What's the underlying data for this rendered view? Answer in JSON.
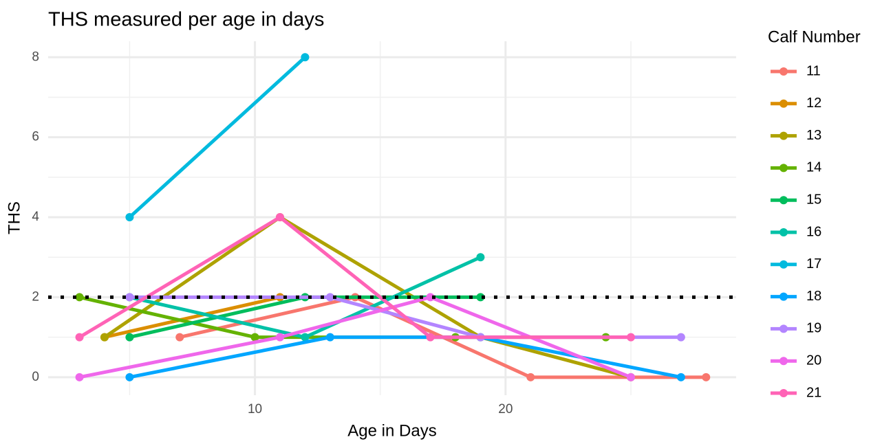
{
  "chart_data": {
    "type": "line",
    "title": "THS measured per age in days",
    "x_label": "Age in Days",
    "y_label": "THS",
    "legend_title": "Calf Number",
    "xlim": [
      1.75,
      29.2
    ],
    "ylim": [
      -0.45,
      8.4
    ],
    "xticks": [
      10,
      20
    ],
    "yticks": [
      0,
      2,
      4,
      6,
      8
    ],
    "xminor": [
      5,
      15,
      25
    ],
    "yminor": [
      1,
      3,
      5,
      7
    ],
    "hline": 2,
    "hline_color": "#000000",
    "grid": true,
    "legend": "right",
    "series": [
      {
        "name": "11",
        "color": "#F8766D",
        "x": [
          7,
          14,
          21,
          28
        ],
        "values": [
          1,
          2,
          0,
          0
        ]
      },
      {
        "name": "12",
        "color": "#DB8E00",
        "x": [
          4,
          11
        ],
        "values": [
          1,
          2
        ]
      },
      {
        "name": "13",
        "color": "#AEA200",
        "x": [
          4,
          11,
          19,
          25
        ],
        "values": [
          1,
          4,
          1,
          0
        ]
      },
      {
        "name": "14",
        "color": "#64B200",
        "x": [
          3,
          10,
          18,
          24
        ],
        "values": [
          2,
          1,
          1,
          1
        ]
      },
      {
        "name": "15",
        "color": "#00BD5C",
        "x": [
          5,
          12,
          19
        ],
        "values": [
          1,
          2,
          2
        ]
      },
      {
        "name": "16",
        "color": "#00C1A7",
        "x": [
          5,
          12,
          19
        ],
        "values": [
          2,
          1,
          3
        ]
      },
      {
        "name": "17",
        "color": "#00BADE",
        "x": [
          5,
          12
        ],
        "values": [
          4,
          8
        ]
      },
      {
        "name": "18",
        "color": "#00A6FF",
        "x": [
          5,
          13,
          19,
          27
        ],
        "values": [
          0,
          1,
          1,
          0
        ]
      },
      {
        "name": "19",
        "color": "#B385FF",
        "x": [
          5,
          13,
          19,
          27
        ],
        "values": [
          2,
          2,
          1,
          1
        ]
      },
      {
        "name": "20",
        "color": "#EF67EB",
        "x": [
          3,
          11,
          17,
          25
        ],
        "values": [
          0,
          1,
          2,
          0
        ]
      },
      {
        "name": "21",
        "color": "#FF63B6",
        "x": [
          3,
          11,
          17,
          25
        ],
        "values": [
          1,
          4,
          1,
          1
        ]
      }
    ]
  }
}
